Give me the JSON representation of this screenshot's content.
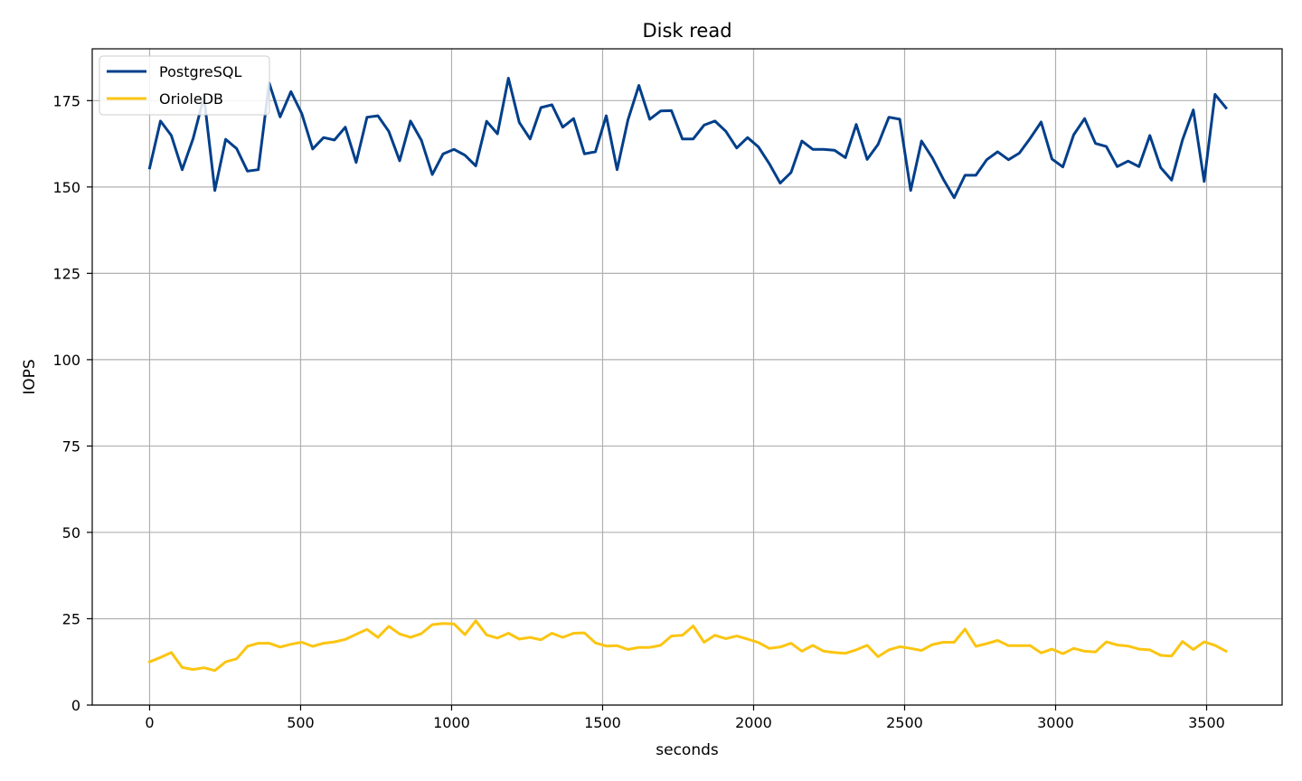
{
  "chart_data": {
    "type": "line",
    "title": "Disk read",
    "xlabel": "seconds",
    "ylabel": "IOPS",
    "xlim": [
      -190,
      3750
    ],
    "ylim": [
      0,
      190
    ],
    "xticks": [
      0,
      500,
      1000,
      1500,
      2000,
      2500,
      3000,
      3500
    ],
    "xtick_labels": [
      "0",
      "500",
      "1000",
      "1500",
      "2000",
      "2500",
      "3000",
      "3500"
    ],
    "yticks": [
      0,
      25,
      50,
      75,
      100,
      125,
      150,
      175
    ],
    "ytick_labels": [
      "0",
      "25",
      "50",
      "75",
      "100",
      "125",
      "150",
      "175"
    ],
    "grid": true,
    "legend_position": "top-left",
    "x": [
      0,
      36,
      72,
      108,
      144,
      180,
      216,
      252,
      288,
      324,
      360,
      396,
      432,
      468,
      504,
      540,
      576,
      612,
      648,
      684,
      720,
      756,
      792,
      828,
      864,
      900,
      936,
      972,
      1008,
      1044,
      1080,
      1116,
      1152,
      1188,
      1224,
      1260,
      1296,
      1332,
      1368,
      1404,
      1440,
      1476,
      1512,
      1548,
      1584,
      1620,
      1656,
      1692,
      1728,
      1764,
      1800,
      1836,
      1872,
      1908,
      1944,
      1980,
      2016,
      2052,
      2088,
      2124,
      2160,
      2196,
      2232,
      2268,
      2304,
      2340,
      2376,
      2412,
      2448,
      2484,
      2520,
      2556,
      2592,
      2628,
      2664,
      2700,
      2736,
      2772,
      2808,
      2844,
      2880,
      2916,
      2952,
      2988,
      3024,
      3060,
      3096,
      3132,
      3168,
      3204,
      3240,
      3276,
      3312,
      3348,
      3384,
      3420,
      3456,
      3492,
      3528,
      3564
    ],
    "series": [
      {
        "name": "PostgreSQL",
        "color": "#003f8a",
        "values": [
          155.5,
          169.1,
          164.9,
          155.0,
          164.0,
          176.1,
          149.0,
          163.8,
          161.1,
          154.6,
          155.0,
          180.1,
          170.3,
          177.6,
          171.2,
          161.0,
          164.3,
          163.6,
          167.3,
          157.1,
          170.2,
          170.6,
          166.1,
          157.6,
          169.1,
          163.5,
          153.6,
          159.6,
          160.9,
          159.2,
          156.1,
          169.0,
          165.4,
          181.5,
          168.7,
          163.9,
          173.0,
          173.8,
          167.3,
          169.8,
          159.6,
          160.2,
          170.6,
          155.0,
          169.4,
          179.4,
          169.6,
          172.0,
          172.1,
          163.9,
          163.9,
          167.9,
          169.1,
          166.1,
          161.3,
          164.3,
          161.6,
          156.7,
          151.1,
          154.2,
          163.3,
          160.9,
          160.9,
          160.6,
          158.5,
          168.1,
          158.0,
          162.3,
          170.2,
          169.6,
          149.0,
          163.3,
          158.4,
          152.3,
          146.9,
          153.4,
          153.4,
          157.9,
          160.2,
          157.9,
          159.8,
          164.1,
          168.8,
          158.1,
          155.8,
          165.1,
          169.8,
          162.6,
          161.7,
          155.9,
          157.5,
          155.9,
          164.9,
          155.6,
          152.0,
          163.6,
          172.3,
          151.6,
          176.8,
          172.9
        ]
      },
      {
        "name": "OrioleDB",
        "color": "#fbc512",
        "values": [
          12.5,
          13.8,
          15.2,
          10.9,
          10.3,
          10.8,
          10.0,
          12.5,
          13.4,
          17.0,
          17.9,
          17.9,
          16.8,
          17.6,
          18.2,
          17.0,
          17.9,
          18.3,
          19.0,
          20.5,
          21.9,
          19.6,
          22.8,
          20.6,
          19.6,
          20.7,
          23.3,
          23.6,
          23.5,
          20.4,
          24.4,
          20.3,
          19.4,
          20.8,
          19.1,
          19.6,
          18.9,
          20.8,
          19.6,
          20.8,
          20.9,
          18.0,
          17.1,
          17.2,
          16.1,
          16.7,
          16.7,
          17.3,
          20.0,
          20.2,
          22.9,
          18.2,
          20.2,
          19.2,
          20.0,
          19.1,
          18.1,
          16.4,
          16.8,
          17.9,
          15.6,
          17.3,
          15.6,
          15.2,
          15.0,
          16.0,
          17.3,
          14.0,
          16.0,
          16.9,
          16.4,
          15.8,
          17.5,
          18.2,
          18.2,
          22.0,
          17.0,
          17.8,
          18.7,
          17.2,
          17.2,
          17.2,
          15.1,
          16.2,
          14.9,
          16.4,
          15.6,
          15.4,
          18.3,
          17.4,
          17.1,
          16.2,
          16.0,
          14.4,
          14.2,
          18.4,
          16.1,
          18.3,
          17.3,
          15.6
        ]
      }
    ]
  }
}
